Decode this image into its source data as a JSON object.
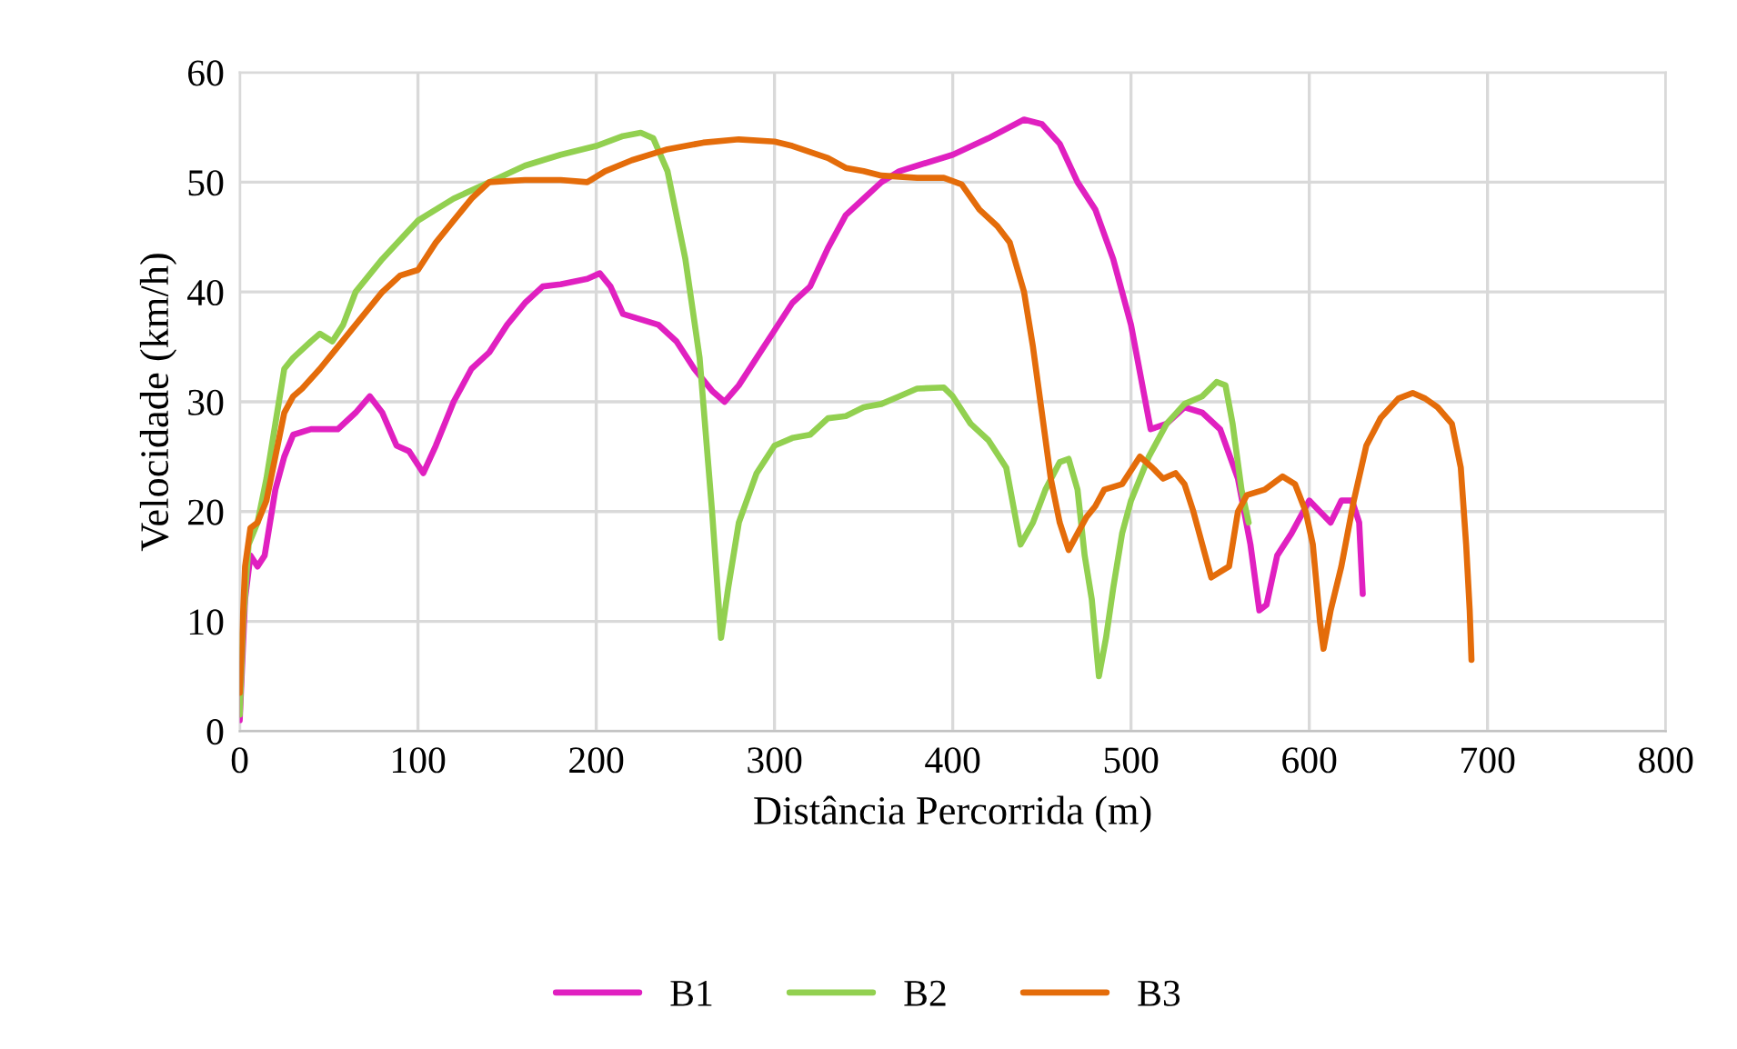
{
  "chart_data": {
    "type": "line",
    "xlabel": "Distância Percorrida (m)",
    "ylabel": "Velocidade (km/h)",
    "xlim": [
      0,
      800
    ],
    "xticks": [
      0,
      100,
      200,
      300,
      400,
      500,
      600,
      700,
      800
    ],
    "ylim": [
      0,
      60
    ],
    "yticks": [
      0,
      10,
      20,
      30,
      40,
      50,
      60
    ],
    "grid": true,
    "legend": "bottom",
    "marker": "none",
    "line_style": "solid",
    "series": [
      {
        "name": "B1",
        "color": "#e020c0",
        "x": [
          0,
          3,
          6,
          10,
          14,
          20,
          25,
          30,
          40,
          55,
          65,
          73,
          80,
          88,
          95,
          103,
          110,
          120,
          130,
          140,
          150,
          160,
          170,
          180,
          195,
          202,
          208,
          215,
          225,
          235,
          245,
          255,
          265,
          272,
          280,
          290,
          300,
          310,
          320,
          330,
          340,
          350,
          360,
          370,
          380,
          400,
          420,
          440,
          450,
          460,
          470,
          480,
          490,
          500,
          511,
          520,
          530,
          540,
          550,
          560,
          567,
          572,
          576,
          582,
          590,
          600,
          606,
          612,
          618,
          624,
          628,
          630
        ],
        "values": [
          1,
          12,
          16,
          15,
          16,
          22,
          25,
          27,
          27.5,
          27.5,
          29,
          30.5,
          29,
          26,
          25.5,
          23.5,
          26,
          30,
          33,
          34.5,
          37,
          39,
          40.5,
          40.7,
          41.2,
          41.7,
          40.5,
          38,
          37.5,
          37,
          35.5,
          33,
          31,
          30,
          31.5,
          34,
          36.5,
          39,
          40.5,
          44,
          47,
          48.5,
          50,
          51,
          51.5,
          52.5,
          54,
          55.7,
          55.3,
          53.5,
          50,
          47.5,
          43,
          37,
          27.5,
          28,
          29.5,
          29,
          27.5,
          23,
          17,
          11,
          11.5,
          16,
          18,
          21,
          20,
          19,
          21,
          21,
          19,
          12.5
        ]
      },
      {
        "name": "B2",
        "color": "#92d050",
        "x": [
          0,
          2,
          5,
          10,
          15,
          20,
          25,
          30,
          40,
          45,
          52,
          58,
          65,
          80,
          100,
          120,
          140,
          160,
          180,
          200,
          215,
          225,
          232,
          240,
          250,
          258,
          265,
          270,
          274,
          280,
          290,
          300,
          310,
          320,
          330,
          340,
          350,
          360,
          370,
          380,
          395,
          400,
          410,
          420,
          430,
          438,
          445,
          452,
          460,
          465,
          470,
          474,
          478,
          482,
          486,
          490,
          495,
          500,
          510,
          520,
          530,
          540,
          548,
          553,
          557,
          562,
          566
        ],
        "values": [
          1.5,
          10,
          17,
          19,
          23,
          28,
          33,
          34,
          35.5,
          36.2,
          35.5,
          37,
          40,
          43,
          46.5,
          48.5,
          50,
          51.5,
          52.5,
          53.3,
          54.2,
          54.5,
          54,
          51,
          43,
          34,
          20,
          8.5,
          13,
          19,
          23.5,
          26,
          26.7,
          27,
          28.5,
          28.7,
          29.5,
          29.8,
          30.5,
          31.2,
          31.3,
          30.5,
          28,
          26.5,
          24,
          17,
          19,
          22,
          24.5,
          24.8,
          22,
          16,
          12,
          5,
          8.5,
          13,
          18,
          21,
          25,
          28,
          29.8,
          30.5,
          31.8,
          31.5,
          28,
          22,
          19
        ]
      },
      {
        "name": "B3",
        "color": "#e46c0a",
        "x": [
          0,
          3,
          6,
          10,
          15,
          20,
          25,
          30,
          35,
          45,
          55,
          65,
          80,
          90,
          100,
          110,
          120,
          130,
          140,
          160,
          180,
          195,
          205,
          220,
          240,
          260,
          280,
          300,
          310,
          330,
          340,
          350,
          360,
          380,
          395,
          405,
          415,
          425,
          432,
          440,
          445,
          450,
          455,
          460,
          465,
          470,
          475,
          480,
          485,
          495,
          505,
          512,
          518,
          525,
          530,
          535,
          540,
          545,
          550,
          555,
          560,
          565,
          575,
          585,
          592,
          598,
          602,
          606,
          608,
          612,
          618,
          625,
          632,
          640,
          650,
          658,
          665,
          672,
          680,
          685,
          688,
          690,
          691
        ],
        "values": [
          3.5,
          15,
          18.5,
          19,
          21,
          25,
          29,
          30.5,
          31.2,
          33,
          35,
          37,
          40,
          41.5,
          42,
          44.5,
          46.5,
          48.5,
          50,
          50.2,
          50.2,
          50,
          51,
          52,
          53,
          53.6,
          53.9,
          53.7,
          53.3,
          52.2,
          51.3,
          51,
          50.6,
          50.4,
          50.4,
          49.8,
          47.5,
          46,
          44.5,
          40,
          35,
          29,
          23,
          19,
          16.5,
          18,
          19.5,
          20.5,
          22,
          22.5,
          25,
          24,
          23,
          23.5,
          22.5,
          20,
          17,
          14,
          14.5,
          15,
          20,
          21.5,
          22,
          23.2,
          22.5,
          20,
          17,
          10,
          7.5,
          11,
          15,
          21,
          26,
          28.5,
          30.3,
          30.8,
          30.3,
          29.5,
          28,
          24,
          17,
          11,
          6.5
        ]
      }
    ]
  }
}
